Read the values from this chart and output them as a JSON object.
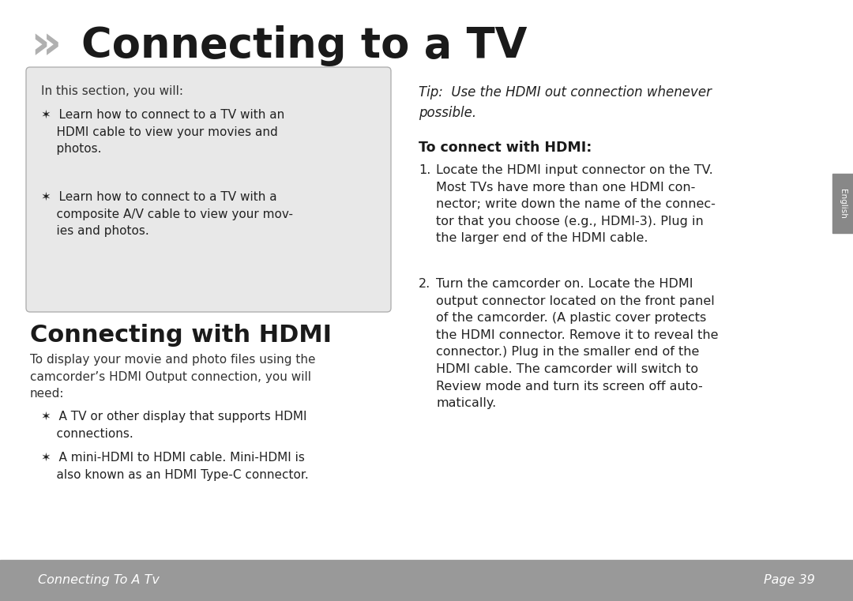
{
  "page_bg": "#ffffff",
  "footer_bg": "#999999",
  "sidebar_bg": "#888888",
  "title_icon_color": "#b0b0b0",
  "box_bg": "#e8e8e8",
  "title": "  Connecting to a TV",
  "title_fontsize": 38,
  "title_color": "#1a1a1a",
  "box_header": "In this section, you will:",
  "tip_text": "Tip:  Use the HDMI out connection whenever\npossible.",
  "subheading": "To connect with HDMI:",
  "step1_num": "1.",
  "step1_text": "Locate the HDMI input connector on the TV.\nMost TVs have more than one HDMI con-\nnector; write down the name of the connec-\ntor that you choose (e.g., HDMI-3). Plug in\nthe larger end of the HDMI cable.",
  "step2_num": "2.",
  "step2_text": "Turn the camcorder on. Locate the HDMI\noutput connector located on the front panel\nof the camcorder. (A plastic cover protects\nthe HDMI connector. Remove it to reveal the\nconnector.) Plug in the smaller end of the\nHDMI cable. The camcorder will switch to\nReview mode and turn its screen off auto-\nmatically.",
  "section_heading": "Connecting with HDMI",
  "section_body": "To display your movie and photo files using the\ncamcorder’s HDMI Output connection, you will\nneed:",
  "bullet_left_1a": "✶  Learn how to connect to a TV with an",
  "bullet_left_1b": "    HDMI cable to view your movies and",
  "bullet_left_1c": "    photos.",
  "bullet_left_2a": "✶  Learn how to connect to a TV with a",
  "bullet_left_2b": "    composite A/V cable to view your mov-",
  "bullet_left_2c": "    ies and photos.",
  "bullet_hdmi_1a": "✶  A TV or other display that supports HDMI",
  "bullet_hdmi_1b": "    connections.",
  "bullet_hdmi_2a": "✶  A mini-HDMI to HDMI cable. Mini-HDMI is",
  "bullet_hdmi_2b": "    also known as an HDMI Type-C connector.",
  "footer_left": "Connecting To A Tv",
  "footer_right": "Page 39",
  "sidebar_text": "English",
  "icon_char": "»"
}
